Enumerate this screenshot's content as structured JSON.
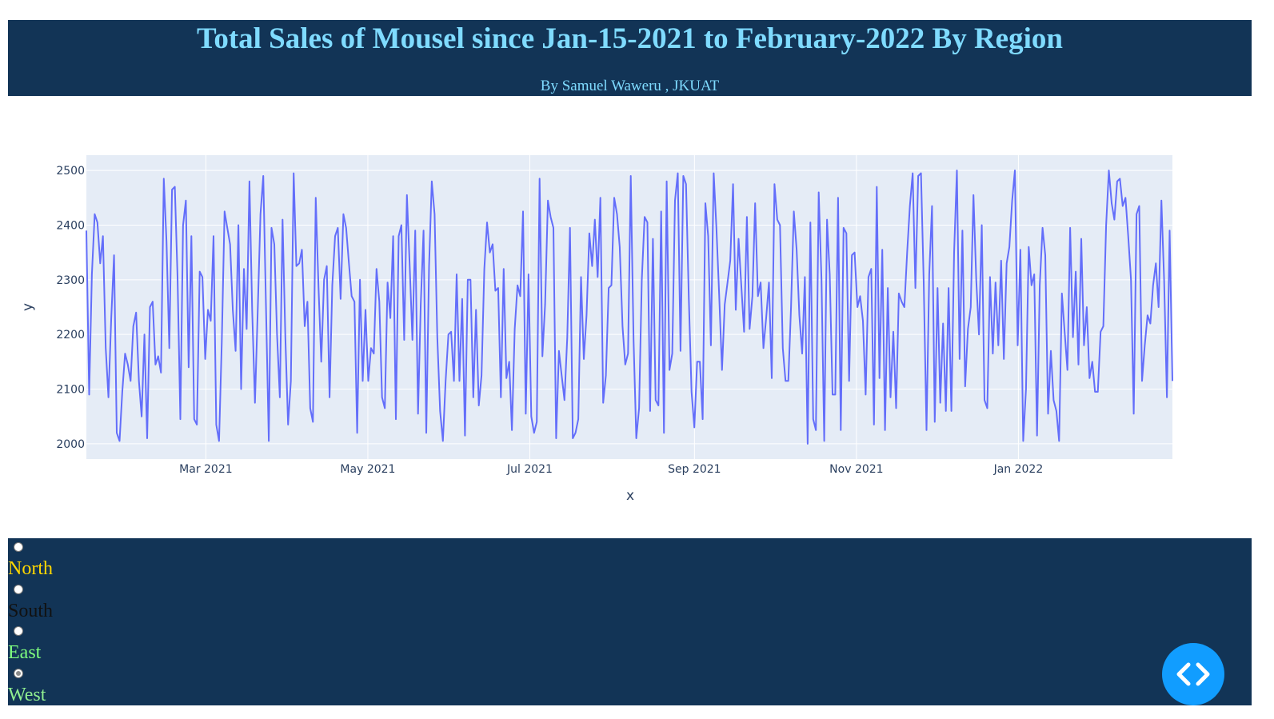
{
  "header": {
    "title": "Total Sales of Mousel since Jan-15-2021 to February-2022 By Region",
    "subtitle": "By Samuel Waweru , JKUAT"
  },
  "colors": {
    "header_bg": "#123456",
    "title": "#7fdbff",
    "line": "#636efa",
    "plot_bg": "#e5ecf6",
    "north": "#ffd700",
    "south": "#111111",
    "east": "#7fff7f",
    "west": "#90ee90",
    "code_button": "#119dff"
  },
  "region_selector": {
    "options": [
      {
        "label": "North",
        "checked": false
      },
      {
        "label": "South",
        "checked": false
      },
      {
        "label": "East",
        "checked": false
      },
      {
        "label": "West",
        "checked": true
      }
    ]
  },
  "code_button": {
    "icon": "code-brackets-icon"
  },
  "chart_data": {
    "type": "line",
    "xlabel": "x",
    "ylabel": "y",
    "x_start": "2021-01-15",
    "x_end": "2022-02-28",
    "ylim": [
      1972,
      2528
    ],
    "yticks": [
      2000,
      2100,
      2200,
      2300,
      2400,
      2500
    ],
    "xticks": [
      {
        "date": "2021-03-01",
        "label": "Mar 2021"
      },
      {
        "date": "2021-05-01",
        "label": "May 2021"
      },
      {
        "date": "2021-07-01",
        "label": "Jul 2021"
      },
      {
        "date": "2021-09-01",
        "label": "Sep 2021"
      },
      {
        "date": "2021-11-01",
        "label": "Nov 2021"
      },
      {
        "date": "2022-01-01",
        "label": "Jan 2022"
      }
    ],
    "grid": true,
    "series": [
      {
        "values": [
          2390,
          2090,
          2310,
          2420,
          2405,
          2330,
          2380,
          2175,
          2085,
          2230,
          2345,
          2020,
          2005,
          2095,
          2165,
          2145,
          2115,
          2215,
          2240,
          2115,
          2050,
          2200,
          2010,
          2250,
          2260,
          2145,
          2160,
          2130,
          2485,
          2370,
          2175,
          2465,
          2470,
          2305,
          2045,
          2400,
          2445,
          2140,
          2380,
          2045,
          2035,
          2315,
          2305,
          2155,
          2245,
          2225,
          2380,
          2035,
          2005,
          2185,
          2425,
          2395,
          2365,
          2245,
          2170,
          2400,
          2100,
          2320,
          2210,
          2480,
          2245,
          2075,
          2240,
          2420,
          2490,
          2250,
          2005,
          2395,
          2365,
          2200,
          2085,
          2410,
          2195,
          2035,
          2115,
          2495,
          2325,
          2330,
          2355,
          2215,
          2260,
          2065,
          2040,
          2450,
          2285,
          2150,
          2300,
          2325,
          2085,
          2290,
          2380,
          2395,
          2265,
          2420,
          2395,
          2330,
          2270,
          2260,
          2020,
          2300,
          2115,
          2245,
          2115,
          2175,
          2165,
          2320,
          2260,
          2085,
          2065,
          2295,
          2230,
          2380,
          2045,
          2380,
          2400,
          2190,
          2455,
          2325,
          2190,
          2390,
          2055,
          2255,
          2390,
          2020,
          2325,
          2480,
          2420,
          2195,
          2060,
          2005,
          2115,
          2200,
          2205,
          2115,
          2310,
          2115,
          2265,
          2015,
          2300,
          2300,
          2085,
          2245,
          2070,
          2125,
          2320,
          2405,
          2350,
          2365,
          2280,
          2285,
          2085,
          2320,
          2120,
          2150,
          2025,
          2210,
          2290,
          2270,
          2425,
          2055,
          2310,
          2050,
          2020,
          2040,
          2485,
          2160,
          2255,
          2445,
          2415,
          2395,
          2010,
          2170,
          2125,
          2080,
          2195,
          2395,
          2010,
          2020,
          2045,
          2305,
          2155,
          2235,
          2385,
          2325,
          2410,
          2305,
          2450,
          2075,
          2125,
          2285,
          2290,
          2450,
          2420,
          2360,
          2215,
          2145,
          2165,
          2490,
          2190,
          2010,
          2065,
          2300,
          2415,
          2405,
          2060,
          2375,
          2080,
          2070,
          2425,
          2020,
          2480,
          2135,
          2165,
          2445,
          2495,
          2170,
          2490,
          2475,
          2265,
          2095,
          2030,
          2150,
          2150,
          2045,
          2440,
          2380,
          2180,
          2495,
          2395,
          2270,
          2135,
          2255,
          2295,
          2335,
          2475,
          2245,
          2375,
          2290,
          2205,
          2415,
          2210,
          2270,
          2440,
          2270,
          2295,
          2175,
          2230,
          2295,
          2120,
          2475,
          2410,
          2400,
          2175,
          2115,
          2115,
          2250,
          2425,
          2355,
          2235,
          2165,
          2305,
          2000,
          2405,
          2045,
          2025,
          2460,
          2300,
          2005,
          2410,
          2310,
          2090,
          2090,
          2450,
          2025,
          2395,
          2385,
          2115,
          2345,
          2350,
          2250,
          2270,
          2225,
          2090,
          2305,
          2320,
          2035,
          2470,
          2120,
          2355,
          2025,
          2285,
          2085,
          2205,
          2065,
          2275,
          2260,
          2250,
          2350,
          2435,
          2495,
          2285,
          2490,
          2495,
          2295,
          2025,
          2310,
          2435,
          2040,
          2285,
          2075,
          2220,
          2060,
          2285,
          2060,
          2350,
          2500,
          2155,
          2390,
          2105,
          2210,
          2250,
          2455,
          2300,
          2200,
          2400,
          2080,
          2065,
          2305,
          2165,
          2295,
          2180,
          2335,
          2155,
          2330,
          2360,
          2445,
          2500,
          2180,
          2355,
          2005,
          2100,
          2360,
          2290,
          2310,
          2015,
          2290,
          2395,
          2345,
          2055,
          2170,
          2080,
          2060,
          2005,
          2275,
          2205,
          2135,
          2395,
          2195,
          2315,
          2145,
          2375,
          2180,
          2250,
          2120,
          2150,
          2095,
          2095,
          2205,
          2215,
          2400,
          2500,
          2440,
          2410,
          2480,
          2485,
          2435,
          2450,
          2380,
          2300,
          2055,
          2420,
          2435,
          2115,
          2180,
          2235,
          2220,
          2290,
          2330,
          2250,
          2445,
          2300,
          2085,
          2390,
          2115
        ]
      }
    ]
  }
}
